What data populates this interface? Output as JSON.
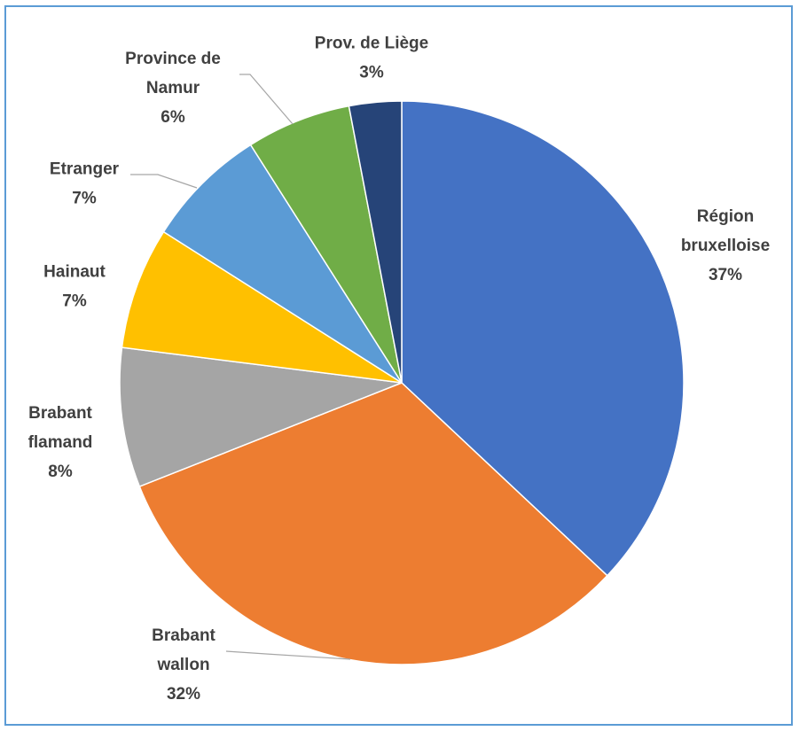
{
  "chart_data": {
    "type": "pie",
    "title": "",
    "start_angle_deg": 0,
    "direction": "clockwise",
    "slices": [
      {
        "label": [
          "Région",
          "bruxelloise"
        ],
        "percent_label": "37%",
        "value": 37,
        "color": "#4472c4"
      },
      {
        "label": [
          "Brabant",
          "wallon"
        ],
        "percent_label": "32%",
        "value": 32,
        "color": "#ed7d31"
      },
      {
        "label": [
          "Brabant",
          "flamand"
        ],
        "percent_label": "8%",
        "value": 8,
        "color": "#a5a5a5"
      },
      {
        "label": [
          "Hainaut"
        ],
        "percent_label": "7%",
        "value": 7,
        "color": "#ffc000"
      },
      {
        "label": [
          "Etranger"
        ],
        "percent_label": "7%",
        "value": 7,
        "color": "#5b9bd5"
      },
      {
        "label": [
          "Province de",
          "Namur"
        ],
        "percent_label": "6%",
        "value": 6,
        "color": "#70ad47"
      },
      {
        "label": [
          "Prov. de Liège"
        ],
        "percent_label": "3%",
        "value": 3,
        "color": "#264478"
      }
    ],
    "legend": "none",
    "data_labels": "outside"
  }
}
